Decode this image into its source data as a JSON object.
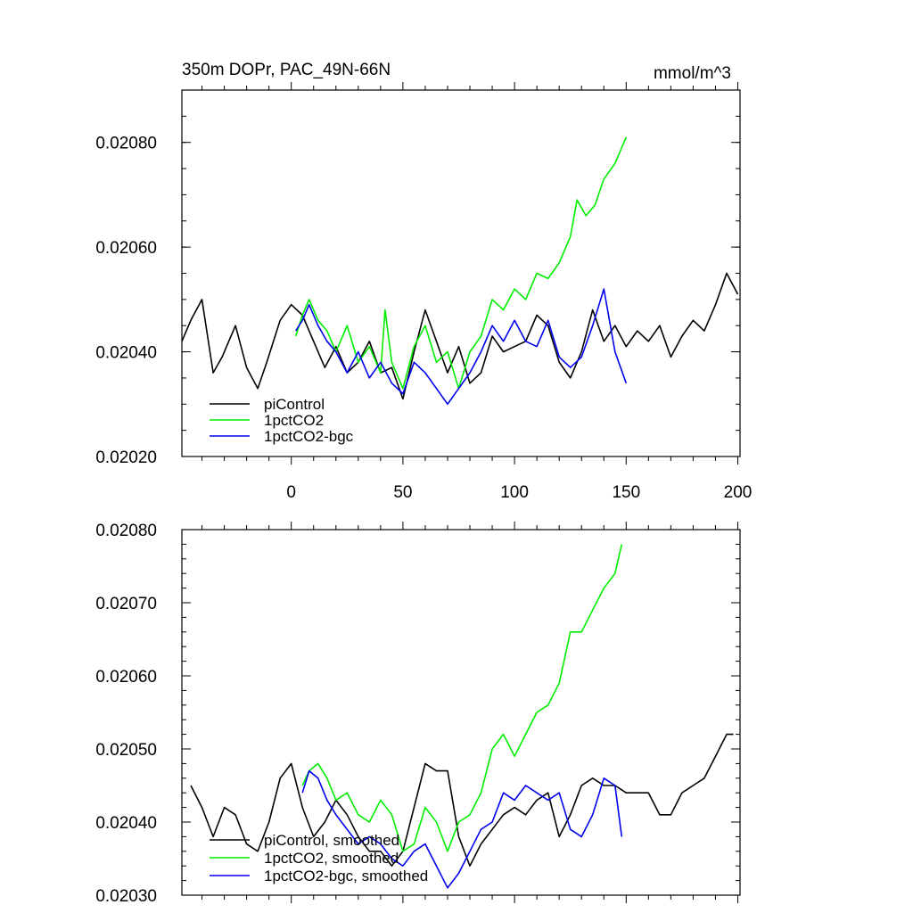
{
  "chart_data": [
    {
      "type": "line",
      "title": "350m DOPr, PAC_49N-66N",
      "units": "mmol/m^3",
      "xlim": [
        -49,
        201
      ],
      "ylim": [
        0.0202,
        0.0209
      ],
      "x_ticks": [
        "0",
        "50",
        "100",
        "150",
        "200"
      ],
      "y_ticks": [
        "0.02020",
        "0.02040",
        "0.02060",
        "0.02080"
      ],
      "grid": false,
      "legend_position": "bottom-left",
      "colors": {
        "piControl": "#000000",
        "1pctCO2": "#00ee00",
        "1pctCO2-bgc": "#0000ee"
      },
      "series": [
        {
          "name": "piControl",
          "x": [
            -49,
            -45,
            -40,
            -35,
            -31,
            -25,
            -20,
            -15,
            -11,
            -5,
            0,
            5,
            10,
            15,
            20,
            25,
            30,
            35,
            40,
            45,
            50,
            55,
            60,
            65,
            70,
            75,
            80,
            85,
            90,
            95,
            100,
            105,
            110,
            115,
            120,
            125,
            130,
            135,
            140,
            145,
            150,
            155,
            160,
            165,
            170,
            175,
            180,
            185,
            190,
            195,
            200
          ],
          "y": [
            0.02042,
            0.02046,
            0.0205,
            0.02036,
            0.02039,
            0.02045,
            0.02037,
            0.02033,
            0.02038,
            0.02046,
            0.02049,
            0.02047,
            0.02042,
            0.02037,
            0.02041,
            0.02036,
            0.02038,
            0.02042,
            0.02036,
            0.02037,
            0.02031,
            0.0204,
            0.02048,
            0.02042,
            0.02036,
            0.02041,
            0.02034,
            0.02036,
            0.02043,
            0.0204,
            0.02041,
            0.02042,
            0.02047,
            0.02045,
            0.02038,
            0.02035,
            0.0204,
            0.02048,
            0.02042,
            0.02045,
            0.02041,
            0.02044,
            0.02042,
            0.02045,
            0.02039,
            0.02043,
            0.02046,
            0.02044,
            0.02049,
            0.02055,
            0.02051
          ]
        },
        {
          "name": "1pctCO2",
          "x": [
            2,
            5,
            8,
            12,
            16,
            20,
            25,
            30,
            35,
            40,
            42,
            45,
            50,
            55,
            60,
            65,
            70,
            75,
            80,
            85,
            90,
            95,
            100,
            105,
            110,
            115,
            120,
            125,
            128,
            132,
            136,
            140,
            145,
            150
          ],
          "y": [
            0.02043,
            0.02047,
            0.0205,
            0.02046,
            0.02044,
            0.0204,
            0.02045,
            0.02038,
            0.02041,
            0.02036,
            0.02048,
            0.02038,
            0.02033,
            0.02041,
            0.02045,
            0.02038,
            0.0204,
            0.02033,
            0.0204,
            0.02043,
            0.0205,
            0.02048,
            0.02052,
            0.0205,
            0.02055,
            0.02054,
            0.02057,
            0.02062,
            0.02069,
            0.02066,
            0.02068,
            0.02073,
            0.02076,
            0.02081
          ]
        },
        {
          "name": "1pctCO2-bgc",
          "x": [
            2,
            5,
            8,
            12,
            16,
            20,
            25,
            30,
            35,
            40,
            45,
            50,
            55,
            60,
            65,
            70,
            75,
            80,
            85,
            90,
            95,
            100,
            105,
            110,
            115,
            120,
            125,
            130,
            135,
            140,
            145,
            150
          ],
          "y": [
            0.02044,
            0.02046,
            0.02049,
            0.02045,
            0.02042,
            0.0204,
            0.02036,
            0.0204,
            0.02035,
            0.02038,
            0.02034,
            0.02032,
            0.02038,
            0.02036,
            0.02033,
            0.0203,
            0.02033,
            0.02036,
            0.0204,
            0.02045,
            0.02042,
            0.02046,
            0.02042,
            0.02041,
            0.02046,
            0.02039,
            0.02037,
            0.02039,
            0.02045,
            0.02052,
            0.0204,
            0.02034
          ]
        }
      ],
      "legend": [
        "piControl",
        "1pctCO2",
        "1pctCO2-bgc"
      ]
    },
    {
      "type": "line",
      "title": "",
      "xlim": [
        -49,
        201
      ],
      "ylim": [
        0.0203,
        0.0208
      ],
      "x_ticks": [],
      "y_ticks": [
        "0.02030",
        "0.02040",
        "0.02050",
        "0.02060",
        "0.02070",
        "0.02080"
      ],
      "grid": false,
      "legend_position": "bottom-left",
      "colors": {
        "piControl, smoothed": "#000000",
        "1pctCO2, smoothed": "#00ee00",
        "1pctCO2-bgc, smoothed": "#0000ee"
      },
      "series": [
        {
          "name": "piControl, smoothed",
          "x": [
            -45,
            -40,
            -35,
            -30,
            -25,
            -20,
            -15,
            -10,
            -5,
            0,
            5,
            10,
            15,
            20,
            25,
            30,
            35,
            40,
            45,
            50,
            55,
            60,
            65,
            70,
            75,
            80,
            85,
            90,
            95,
            100,
            105,
            110,
            115,
            120,
            125,
            130,
            135,
            140,
            145,
            150,
            155,
            160,
            165,
            170,
            175,
            180,
            185,
            190,
            195,
            198
          ],
          "y": [
            0.02045,
            0.02042,
            0.02038,
            0.02042,
            0.02041,
            0.02037,
            0.02036,
            0.0204,
            0.02046,
            0.02048,
            0.02042,
            0.02038,
            0.0204,
            0.02043,
            0.02041,
            0.02038,
            0.02036,
            0.02036,
            0.02034,
            0.02036,
            0.02042,
            0.02048,
            0.02047,
            0.02047,
            0.02038,
            0.02034,
            0.02037,
            0.02039,
            0.02041,
            0.02042,
            0.02041,
            0.02043,
            0.02044,
            0.02038,
            0.02041,
            0.02045,
            0.02046,
            0.02045,
            0.02045,
            0.02044,
            0.02044,
            0.02044,
            0.02041,
            0.02041,
            0.02044,
            0.02045,
            0.02046,
            0.02049,
            0.02052,
            0.02052
          ]
        },
        {
          "name": "1pctCO2, smoothed",
          "x": [
            5,
            8,
            12,
            16,
            20,
            25,
            30,
            35,
            40,
            45,
            50,
            55,
            60,
            65,
            70,
            75,
            80,
            85,
            90,
            95,
            100,
            105,
            110,
            115,
            120,
            125,
            130,
            135,
            140,
            145,
            148
          ],
          "y": [
            0.02045,
            0.02047,
            0.02048,
            0.02046,
            0.02043,
            0.02044,
            0.02041,
            0.0204,
            0.02043,
            0.02041,
            0.02036,
            0.02037,
            0.02042,
            0.0204,
            0.02036,
            0.0204,
            0.02041,
            0.02044,
            0.0205,
            0.02052,
            0.02049,
            0.02052,
            0.02055,
            0.02056,
            0.02059,
            0.02066,
            0.02066,
            0.02069,
            0.02072,
            0.02074,
            0.02078
          ]
        },
        {
          "name": "1pctCO2-bgc, smoothed",
          "x": [
            5,
            8,
            12,
            16,
            20,
            25,
            30,
            35,
            40,
            45,
            50,
            55,
            60,
            65,
            70,
            75,
            80,
            85,
            90,
            95,
            100,
            105,
            110,
            115,
            120,
            125,
            130,
            135,
            140,
            145,
            148
          ],
          "y": [
            0.02044,
            0.02047,
            0.02046,
            0.02043,
            0.02041,
            0.02039,
            0.02037,
            0.02038,
            0.02037,
            0.02035,
            0.02034,
            0.02036,
            0.02037,
            0.02034,
            0.02031,
            0.02033,
            0.02036,
            0.02039,
            0.0204,
            0.02044,
            0.02043,
            0.02045,
            0.02044,
            0.02043,
            0.02044,
            0.02039,
            0.02038,
            0.02041,
            0.02046,
            0.02045,
            0.02038
          ]
        }
      ],
      "legend": [
        "piControl, smoothed",
        "1pctCO2, smoothed",
        "1pctCO2-bgc, smoothed"
      ]
    }
  ]
}
